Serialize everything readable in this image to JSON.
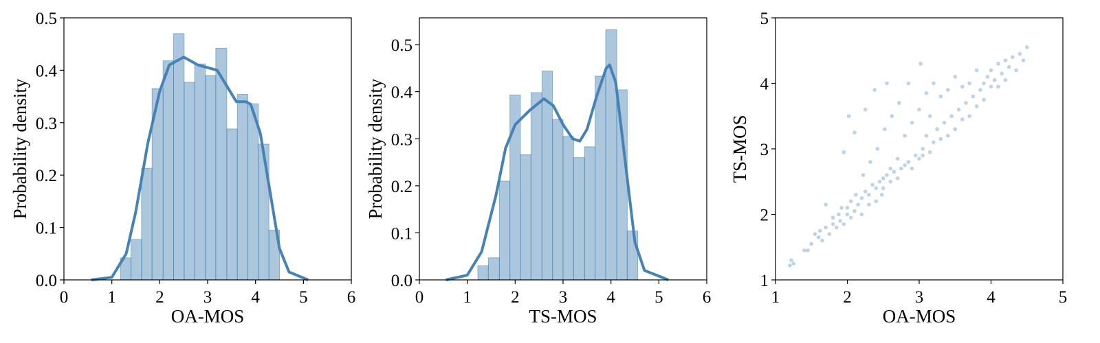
{
  "chart_data": [
    {
      "type": "histogram",
      "xlabel": "OA-MOS",
      "ylabel": "Probability density",
      "color": "#4682b4",
      "bins": [
        1.18,
        1.4,
        1.62,
        1.84,
        2.07,
        2.29,
        2.51,
        2.73,
        2.95,
        3.17,
        3.4,
        3.62,
        3.84,
        4.06,
        4.28,
        4.5
      ],
      "values": [
        0.042,
        0.077,
        0.213,
        0.365,
        0.418,
        0.47,
        0.377,
        0.412,
        0.39,
        0.442,
        0.288,
        0.354,
        0.336,
        0.259,
        0.095
      ],
      "kde": {
        "x": [
          0.57,
          1.0,
          1.3,
          1.5,
          1.75,
          2.0,
          2.2,
          2.5,
          2.8,
          3.0,
          3.2,
          3.4,
          3.6,
          3.8,
          3.9,
          4.1,
          4.3,
          4.5,
          4.7,
          5.1
        ],
        "values": [
          0,
          0.005,
          0.05,
          0.13,
          0.26,
          0.36,
          0.41,
          0.425,
          0.41,
          0.405,
          0.4,
          0.37,
          0.34,
          0.34,
          0.335,
          0.28,
          0.17,
          0.06,
          0.015,
          0
        ]
      },
      "xlim": [
        0,
        6
      ],
      "xticks": [
        0,
        1,
        2,
        3,
        4,
        5,
        6
      ],
      "ylim": [
        0,
        0.5
      ],
      "yticks": [
        {
          "value": 0,
          "label": "0.0"
        },
        0.1,
        0.2,
        0.3,
        0.4,
        0.5
      ]
    },
    {
      "type": "histogram",
      "xlabel": "TS-MOS",
      "ylabel": "Probability density",
      "color": "#4682b4",
      "bins": [
        1.22,
        1.44,
        1.67,
        1.89,
        2.11,
        2.33,
        2.56,
        2.78,
        3.0,
        3.22,
        3.45,
        3.67,
        3.89,
        4.12,
        4.34,
        4.56
      ],
      "values": [
        0.03,
        0.047,
        0.21,
        0.393,
        0.266,
        0.398,
        0.444,
        0.341,
        0.305,
        0.26,
        0.283,
        0.433,
        0.532,
        0.404,
        0.104
      ],
      "kde": {
        "x": [
          0.55,
          1.0,
          1.3,
          1.6,
          1.8,
          2.0,
          2.3,
          2.6,
          2.8,
          3.0,
          3.2,
          3.35,
          3.5,
          3.7,
          3.9,
          3.97,
          4.1,
          4.3,
          4.5,
          4.7,
          5.2
        ],
        "values": [
          0,
          0.01,
          0.06,
          0.18,
          0.28,
          0.33,
          0.36,
          0.385,
          0.37,
          0.33,
          0.3,
          0.295,
          0.32,
          0.39,
          0.45,
          0.457,
          0.42,
          0.25,
          0.08,
          0.02,
          0
        ]
      },
      "xlim": [
        0,
        6
      ],
      "xticks": [
        0,
        1,
        2,
        3,
        4,
        5,
        6
      ],
      "ylim": [
        0,
        0.557
      ],
      "yticks": [
        {
          "value": 0,
          "label": "0.0"
        },
        0.1,
        0.2,
        0.3,
        0.4,
        0.5
      ]
    },
    {
      "type": "scatter",
      "xlabel": "OA-MOS",
      "ylabel": "TS-MOS",
      "color": "#4682b4",
      "x": [
        1.2,
        1.22,
        1.25,
        1.4,
        1.45,
        1.5,
        1.55,
        1.6,
        1.62,
        1.65,
        1.7,
        1.7,
        1.75,
        1.8,
        1.8,
        1.85,
        1.88,
        1.9,
        1.92,
        1.95,
        1.95,
        2.0,
        2.0,
        2.02,
        2.05,
        2.05,
        2.1,
        2.1,
        2.12,
        2.15,
        2.2,
        2.2,
        2.22,
        2.25,
        2.25,
        2.3,
        2.3,
        2.32,
        2.35,
        2.38,
        2.4,
        2.4,
        2.42,
        2.45,
        2.48,
        2.5,
        2.5,
        2.52,
        2.55,
        2.55,
        2.6,
        2.6,
        2.62,
        2.65,
        2.7,
        2.7,
        2.72,
        2.75,
        2.8,
        2.8,
        2.85,
        2.85,
        2.9,
        2.9,
        2.95,
        3.0,
        3.0,
        3.02,
        3.05,
        3.05,
        3.1,
        3.1,
        3.15,
        3.15,
        3.2,
        3.2,
        3.25,
        3.3,
        3.3,
        3.35,
        3.4,
        3.4,
        3.45,
        3.5,
        3.5,
        3.55,
        3.6,
        3.6,
        3.65,
        3.7,
        3.7,
        3.75,
        3.8,
        3.8,
        3.85,
        3.9,
        3.9,
        3.95,
        4.0,
        4.0,
        4.05,
        4.1,
        4.1,
        4.15,
        4.2,
        4.2,
        4.25,
        4.3,
        4.35,
        4.4,
        4.5,
        4.45
      ],
      "y": [
        1.22,
        1.3,
        1.25,
        1.45,
        1.45,
        1.55,
        1.7,
        1.65,
        1.75,
        1.6,
        1.8,
        2.15,
        1.7,
        1.85,
        1.95,
        1.8,
        2.0,
        1.9,
        2.1,
        1.85,
        2.95,
        2.0,
        2.1,
        3.5,
        1.95,
        2.2,
        2.05,
        3.25,
        2.3,
        2.15,
        2.25,
        2.0,
        2.6,
        2.35,
        3.6,
        2.3,
        2.15,
        2.8,
        2.45,
        3.9,
        2.4,
        2.2,
        3.0,
        2.5,
        2.3,
        2.55,
        2.4,
        3.3,
        2.6,
        4.0,
        2.5,
        2.7,
        3.5,
        2.65,
        2.55,
        2.85,
        3.7,
        2.7,
        2.75,
        3.2,
        2.8,
        4.0,
        2.7,
        3.4,
        2.9,
        2.85,
        3.6,
        4.3,
        3.0,
        2.9,
        3.2,
        3.85,
        2.95,
        3.5,
        3.1,
        4.0,
        3.3,
        3.15,
        3.8,
        3.4,
        3.2,
        3.9,
        3.5,
        3.3,
        4.1,
        3.6,
        3.45,
        3.95,
        3.7,
        3.5,
        4.0,
        3.8,
        3.65,
        4.2,
        3.9,
        4.0,
        3.75,
        4.1,
        3.95,
        4.2,
        4.05,
        3.95,
        4.3,
        4.15,
        4.35,
        4.05,
        4.25,
        4.4,
        4.2,
        4.45,
        4.55,
        4.35
      ],
      "xlim": [
        1,
        5
      ],
      "xticks": [
        1,
        2,
        3,
        4,
        5
      ],
      "ylim": [
        1,
        5
      ],
      "yticks": [
        1,
        2,
        3,
        4,
        5
      ]
    }
  ]
}
